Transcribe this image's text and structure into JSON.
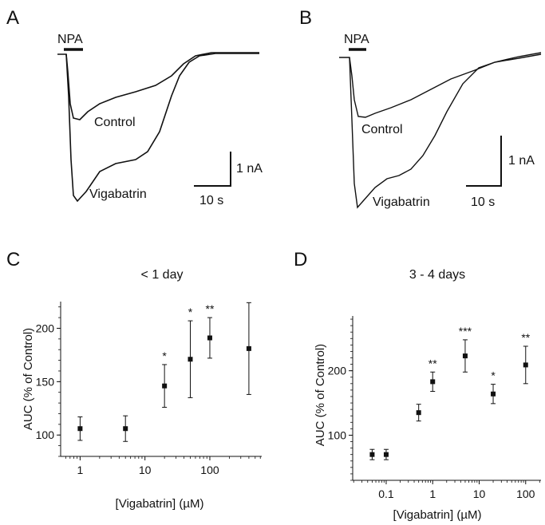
{
  "panels": {
    "A": {
      "letter": "A",
      "bar_label": "NPA",
      "trace_labels": [
        "Control",
        "Vigabatrin"
      ],
      "scale_y_label": "1 nA",
      "scale_x_label": "10 s"
    },
    "B": {
      "letter": "B",
      "bar_label": "NPA",
      "trace_labels": [
        "Control",
        "Vigabatrin"
      ],
      "scale_y_label": "1 nA",
      "scale_x_label": "10 s"
    },
    "C": {
      "letter": "C"
    },
    "D": {
      "letter": "D"
    }
  },
  "chart_data": [
    {
      "type": "scatter",
      "panel": "C",
      "title": "< 1 day",
      "xlabel": "[Vigabatrin] (µM)",
      "ylabel": "AUC (% of Control)",
      "xscale": "log",
      "x_ticks": [
        "1",
        "10",
        "100"
      ],
      "y_ticks": [
        "100",
        "150",
        "200"
      ],
      "ylim": [
        80,
        225
      ],
      "points": [
        {
          "x": 1,
          "y": 106,
          "err_low": 95,
          "err_high": 117,
          "sig": ""
        },
        {
          "x": 5,
          "y": 106,
          "err_low": 94,
          "err_high": 118,
          "sig": ""
        },
        {
          "x": 20,
          "y": 146,
          "err_low": 126,
          "err_high": 166,
          "sig": "*"
        },
        {
          "x": 50,
          "y": 171,
          "err_low": 135,
          "err_high": 207,
          "sig": "*"
        },
        {
          "x": 100,
          "y": 191,
          "err_low": 172,
          "err_high": 210,
          "sig": "**"
        },
        {
          "x": 400,
          "y": 181,
          "err_low": 138,
          "err_high": 224,
          "sig": ""
        }
      ]
    },
    {
      "type": "scatter",
      "panel": "D",
      "title": "3 - 4 days",
      "xlabel": "[Vigabatrin] (µM)",
      "ylabel": "AUC (% of Control)",
      "xscale": "log",
      "x_ticks": [
        "0.1",
        "1",
        "10",
        "100"
      ],
      "y_ticks": [
        "100",
        "200"
      ],
      "ylim": [
        30,
        285
      ],
      "points": [
        {
          "x": 0.05,
          "y": 70,
          "err_low": 62,
          "err_high": 78,
          "sig": ""
        },
        {
          "x": 0.1,
          "y": 70,
          "err_low": 62,
          "err_high": 78,
          "sig": ""
        },
        {
          "x": 0.5,
          "y": 135,
          "err_low": 122,
          "err_high": 148,
          "sig": ""
        },
        {
          "x": 1,
          "y": 183,
          "err_low": 168,
          "err_high": 198,
          "sig": "**"
        },
        {
          "x": 5,
          "y": 223,
          "err_low": 198,
          "err_high": 248,
          "sig": "***"
        },
        {
          "x": 20,
          "y": 164,
          "err_low": 149,
          "err_high": 179,
          "sig": "*"
        },
        {
          "x": 100,
          "y": 209,
          "err_low": 180,
          "err_high": 238,
          "sig": "**"
        }
      ]
    }
  ]
}
